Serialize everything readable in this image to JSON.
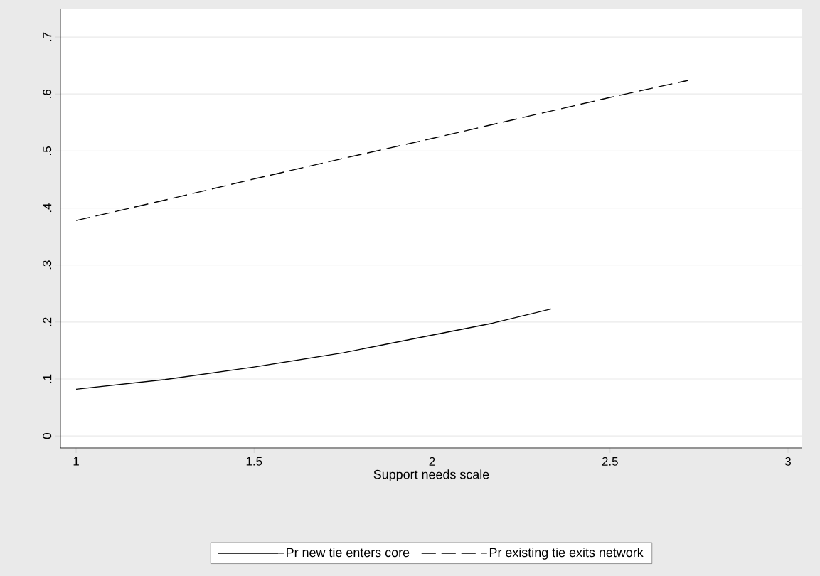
{
  "chart_data": {
    "type": "line",
    "xlabel": "Support needs scale",
    "xlim": [
      0.956,
      3.04
    ],
    "ylim": [
      -0.021,
      0.75
    ],
    "xticks": [
      1,
      1.5,
      2,
      2.5,
      3
    ],
    "yticks": [
      {
        "value": 0,
        "label": "0"
      },
      {
        "value": 0.1,
        "label": ".1"
      },
      {
        "value": 0.2,
        "label": ".2"
      },
      {
        "value": 0.3,
        "label": ".3"
      },
      {
        "value": 0.4,
        "label": ".4"
      },
      {
        "value": 0.5,
        "label": ".5"
      },
      {
        "value": 0.6,
        "label": ".6"
      },
      {
        "value": 0.7,
        "label": ".7"
      }
    ],
    "grid": "y",
    "legend": "bottom",
    "series": [
      {
        "name": "Pr new tie enters core",
        "color": "#000000",
        "line_style": "solid",
        "x": [
          1,
          1.25,
          1.5,
          1.75,
          2,
          2.17,
          2.335
        ],
        "values": [
          0.082,
          0.099,
          0.121,
          0.146,
          0.177,
          0.198,
          0.223
        ]
      },
      {
        "name": "Pr existing tie exits network",
        "color": "#000000",
        "line_style": "dashed",
        "x": [
          1,
          1.25,
          1.5,
          1.75,
          2,
          2.25,
          2.5,
          2.72
        ],
        "values": [
          0.378,
          0.414,
          0.451,
          0.487,
          0.522,
          0.558,
          0.594,
          0.624
        ]
      }
    ]
  }
}
